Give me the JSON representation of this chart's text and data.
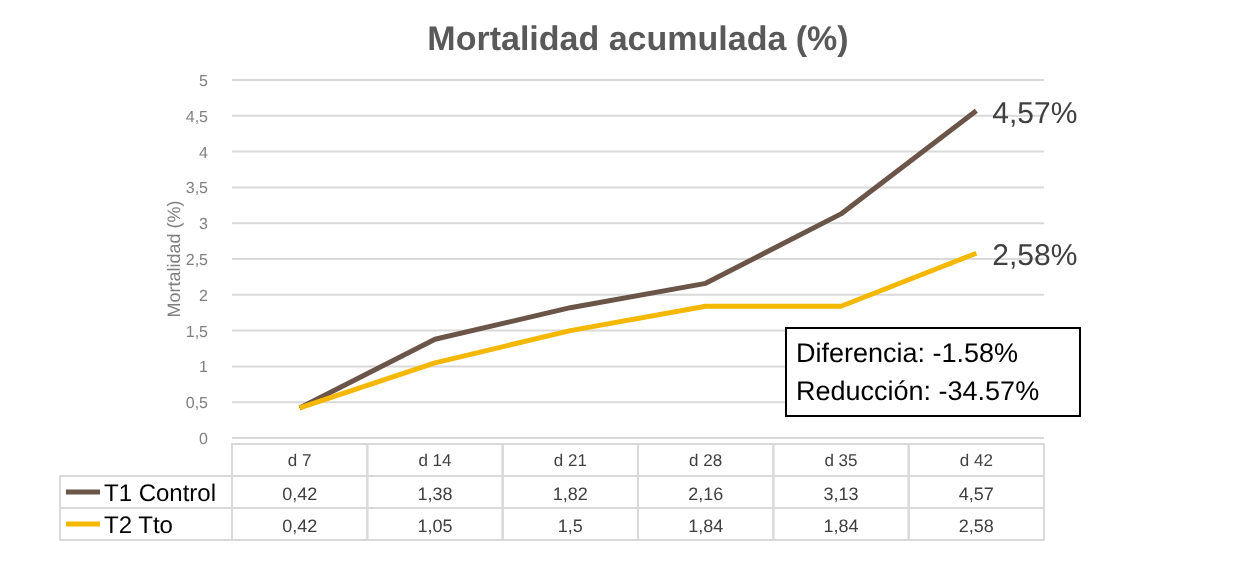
{
  "chart_data": {
    "type": "line",
    "title": "Mortalidad acumulada (%)",
    "ylabel": "Mortalidad (%)",
    "categories": [
      "d 7",
      "d 14",
      "d 21",
      "d 28",
      "d 35",
      "d 42"
    ],
    "series": [
      {
        "name": "T1 Control",
        "color": "#6b5548",
        "values": [
          0.42,
          1.38,
          1.82,
          2.16,
          3.13,
          4.57
        ],
        "value_labels": [
          "0,42",
          "1,38",
          "1,82",
          "2,16",
          "3,13",
          "4,57"
        ]
      },
      {
        "name": "T2 Tto",
        "color": "#f5b800",
        "values": [
          0.42,
          1.05,
          1.5,
          1.84,
          1.84,
          2.58
        ],
        "value_labels": [
          "0,42",
          "1,05",
          "1,5",
          "1,84",
          "1,84",
          "2,58"
        ]
      }
    ],
    "ylim": [
      0,
      5
    ],
    "yticks": [
      0,
      {
        "value": 0.5,
        "label": "0,5"
      },
      1,
      {
        "value": 1.5,
        "label": "1,5"
      },
      2,
      {
        "value": 2.5,
        "label": "2,5"
      },
      3,
      {
        "value": 3.5,
        "label": "3,5"
      },
      4,
      {
        "value": 4.5,
        "label": "4,5"
      },
      5
    ],
    "grid": "y",
    "legend": "bottom left",
    "marker": "none",
    "line_style": "solid",
    "annotations": [
      {
        "text": "4,57%",
        "x": "d 42",
        "y": 4.57
      },
      {
        "text": "2,58%",
        "x": "d 42",
        "y": 2.58
      },
      "Diferencia: -1.58%",
      "Reducción: -34.57%"
    ]
  }
}
